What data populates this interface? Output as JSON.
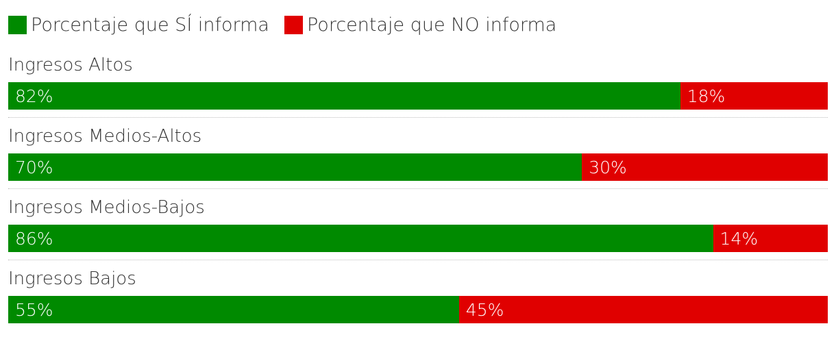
{
  "legend": {
    "yes_label": "Porcentaje que SÍ informa",
    "no_label": "Porcentaje que NO informa"
  },
  "colors": {
    "yes": "#008a00",
    "no": "#e00000"
  },
  "chart_data": {
    "type": "bar",
    "orientation": "horizontal",
    "stacked": true,
    "normalized": true,
    "categories": [
      "Ingresos Altos",
      "Ingresos Medios-Altos",
      "Ingresos Medios-Bajos",
      "Ingresos Bajos"
    ],
    "series": [
      {
        "name": "Porcentaje que SÍ informa",
        "values": [
          82,
          70,
          86,
          55
        ],
        "labels": [
          "82%",
          "70%",
          "86%",
          "55%"
        ],
        "color": "#008a00"
      },
      {
        "name": "Porcentaje que NO informa",
        "values": [
          18,
          30,
          14,
          45
        ],
        "labels": [
          "18%",
          "30%",
          "14%",
          "45%"
        ],
        "color": "#e00000"
      }
    ],
    "xlim": [
      0,
      100
    ],
    "legend_position": "top-left",
    "grid": false
  }
}
